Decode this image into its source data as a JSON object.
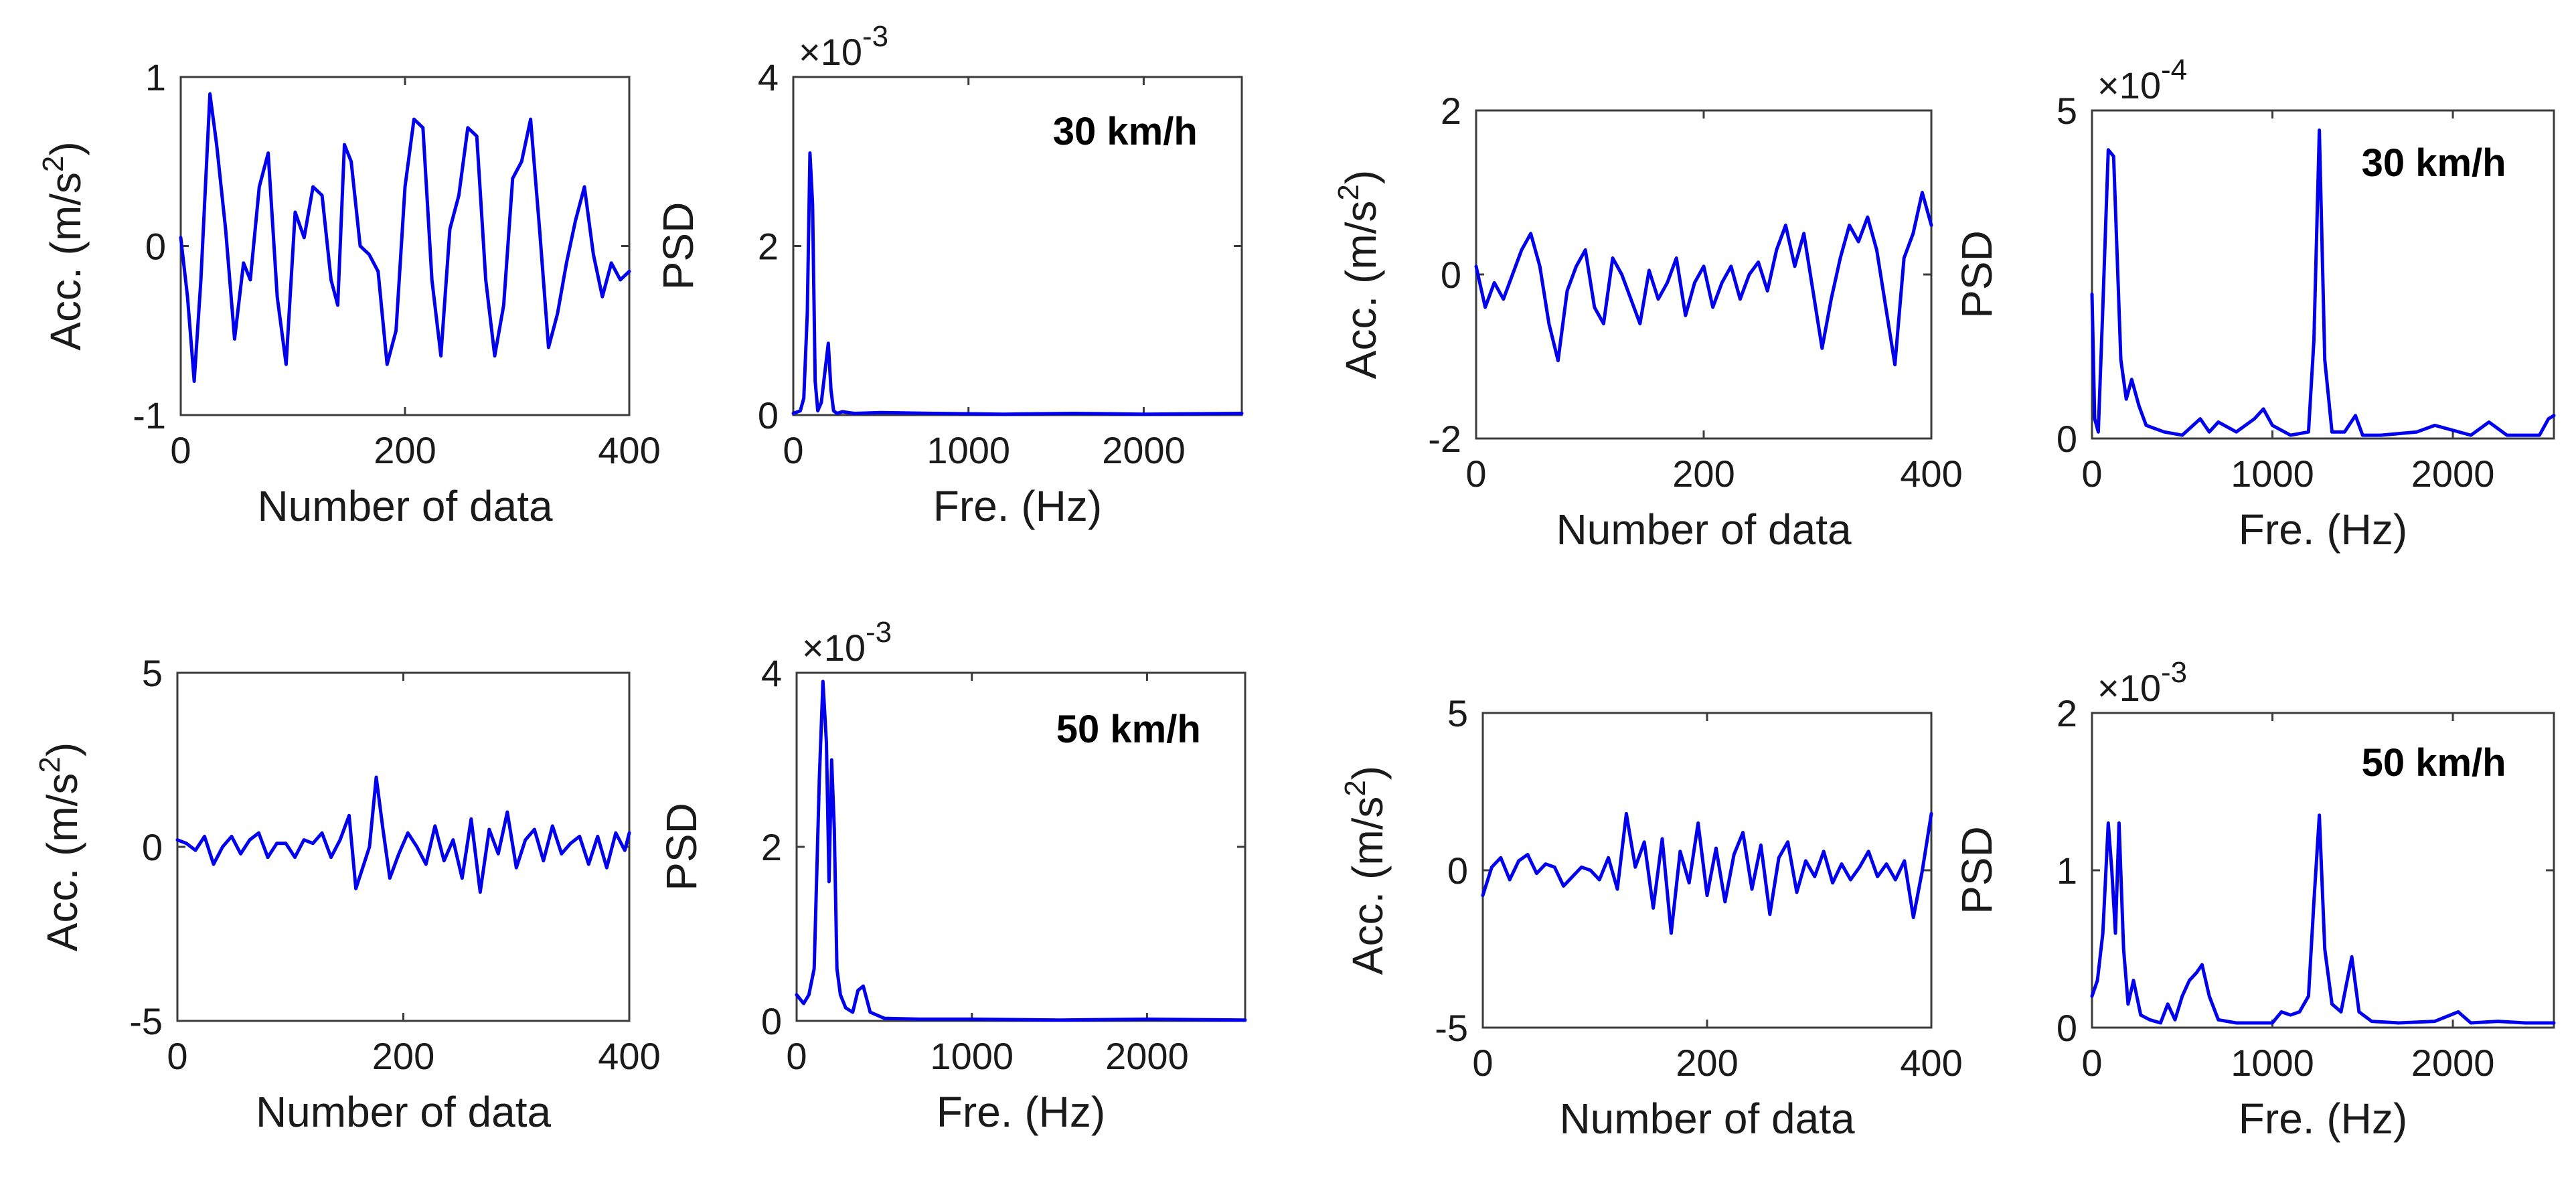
{
  "colors": {
    "series": "#0000ee",
    "axes": "#3c3c3c"
  },
  "chart_data": [
    {
      "id": "p1",
      "type": "line",
      "xlabel": "Number of data",
      "ylabel": "Acc. (m/s^2)",
      "xlim": [
        0,
        400
      ],
      "ylim": [
        -1,
        1
      ],
      "xticks": [
        0,
        200,
        400
      ],
      "xtick_labels": [
        "0",
        "200",
        "400"
      ],
      "yticks": [
        -1,
        0,
        1
      ],
      "ytick_labels": [
        "-1",
        "0",
        "1"
      ],
      "exponent": null,
      "annotation": null,
      "x": [
        0,
        6,
        12,
        18,
        26,
        32,
        40,
        48,
        56,
        62,
        70,
        78,
        86,
        94,
        102,
        110,
        118,
        126,
        134,
        140,
        146,
        152,
        160,
        168,
        176,
        184,
        192,
        200,
        208,
        216,
        224,
        232,
        240,
        248,
        256,
        264,
        272,
        280,
        288,
        296,
        304,
        312,
        320,
        328,
        336,
        344,
        352,
        360,
        368,
        376,
        384,
        392,
        400
      ],
      "y": [
        0.05,
        -0.3,
        -0.8,
        -0.2,
        0.9,
        0.6,
        0.1,
        -0.55,
        -0.1,
        -0.2,
        0.35,
        0.55,
        -0.3,
        -0.7,
        0.2,
        0.05,
        0.35,
        0.3,
        -0.2,
        -0.35,
        0.6,
        0.5,
        0.0,
        -0.05,
        -0.15,
        -0.7,
        -0.5,
        0.35,
        0.75,
        0.7,
        -0.2,
        -0.65,
        0.1,
        0.3,
        0.7,
        0.65,
        -0.2,
        -0.65,
        -0.35,
        0.4,
        0.5,
        0.75,
        0.1,
        -0.6,
        -0.4,
        -0.1,
        0.15,
        0.35,
        -0.05,
        -0.3,
        -0.1,
        -0.2,
        -0.15
      ]
    },
    {
      "id": "p2",
      "type": "line",
      "xlabel": "Fre. (Hz)",
      "ylabel": "PSD",
      "xlim": [
        0,
        2560
      ],
      "ylim": [
        0,
        4
      ],
      "xticks": [
        0,
        1000,
        2000
      ],
      "xtick_labels": [
        "0",
        "1000",
        "2000"
      ],
      "yticks": [
        0,
        2,
        4
      ],
      "ytick_labels": [
        "0",
        "2",
        "4"
      ],
      "exponent": "×10",
      "exponent_power": "-3",
      "annotation": "30 km/h",
      "x": [
        0,
        40,
        60,
        80,
        95,
        110,
        125,
        140,
        160,
        180,
        200,
        215,
        230,
        250,
        280,
        350,
        500,
        800,
        1200,
        1600,
        2000,
        2560
      ],
      "y": [
        0.02,
        0.05,
        0.2,
        1.2,
        3.1,
        2.5,
        0.4,
        0.05,
        0.15,
        0.5,
        0.85,
        0.3,
        0.05,
        0.02,
        0.04,
        0.02,
        0.03,
        0.02,
        0.01,
        0.02,
        0.01,
        0.02
      ]
    },
    {
      "id": "p3",
      "type": "line",
      "xlabel": "Number of data",
      "ylabel": "Acc. (m/s^2)",
      "xlim": [
        0,
        400
      ],
      "ylim": [
        -2,
        2
      ],
      "xticks": [
        0,
        200,
        400
      ],
      "xtick_labels": [
        "0",
        "200",
        "400"
      ],
      "yticks": [
        -2,
        0,
        2
      ],
      "ytick_labels": [
        "-2",
        "0",
        "2"
      ],
      "exponent": null,
      "annotation": null,
      "x": [
        0,
        8,
        16,
        24,
        32,
        40,
        48,
        56,
        64,
        72,
        80,
        88,
        96,
        104,
        112,
        120,
        128,
        136,
        144,
        152,
        160,
        168,
        176,
        184,
        192,
        200,
        208,
        216,
        224,
        232,
        240,
        248,
        256,
        264,
        272,
        280,
        288,
        296,
        304,
        312,
        320,
        328,
        336,
        344,
        352,
        360,
        368,
        376,
        384,
        392,
        400
      ],
      "y": [
        0.1,
        -0.4,
        -0.1,
        -0.3,
        0.0,
        0.3,
        0.5,
        0.1,
        -0.6,
        -1.05,
        -0.2,
        0.1,
        0.3,
        -0.4,
        -0.6,
        0.2,
        0.0,
        -0.3,
        -0.6,
        0.05,
        -0.3,
        -0.1,
        0.2,
        -0.5,
        -0.1,
        0.1,
        -0.4,
        -0.1,
        0.1,
        -0.3,
        0.0,
        0.15,
        -0.2,
        0.3,
        0.6,
        0.1,
        0.5,
        -0.2,
        -0.9,
        -0.3,
        0.2,
        0.6,
        0.4,
        0.7,
        0.3,
        -0.4,
        -1.1,
        0.2,
        0.5,
        1.0,
        0.6
      ]
    },
    {
      "id": "p4",
      "type": "line",
      "xlabel": "Fre. (Hz)",
      "ylabel": "PSD",
      "xlim": [
        0,
        2560
      ],
      "ylim": [
        0,
        5
      ],
      "xticks": [
        0,
        1000,
        2000
      ],
      "xtick_labels": [
        "0",
        "1000",
        "2000"
      ],
      "yticks": [
        0,
        5
      ],
      "ytick_labels": [
        "0",
        "5"
      ],
      "exponent": "×10",
      "exponent_power": "-4",
      "annotation": "30 km/h",
      "x": [
        0,
        15,
        35,
        60,
        90,
        120,
        160,
        190,
        220,
        260,
        300,
        400,
        500,
        600,
        650,
        700,
        800,
        900,
        950,
        1000,
        1100,
        1200,
        1230,
        1260,
        1290,
        1330,
        1400,
        1460,
        1500,
        1600,
        1800,
        1900,
        2100,
        2200,
        2300,
        2480,
        2530,
        2560
      ],
      "y": [
        2.2,
        0.3,
        0.1,
        2.0,
        4.4,
        4.3,
        1.2,
        0.6,
        0.9,
        0.5,
        0.2,
        0.1,
        0.05,
        0.3,
        0.1,
        0.25,
        0.1,
        0.3,
        0.45,
        0.2,
        0.05,
        0.1,
        1.5,
        4.7,
        1.2,
        0.1,
        0.1,
        0.35,
        0.05,
        0.05,
        0.1,
        0.2,
        0.05,
        0.25,
        0.05,
        0.05,
        0.3,
        0.35
      ]
    },
    {
      "id": "p5",
      "type": "line",
      "xlabel": "Number of data",
      "ylabel": "Acc. (m/s^2)",
      "xlim": [
        0,
        400
      ],
      "ylim": [
        -5,
        5
      ],
      "xticks": [
        0,
        200,
        400
      ],
      "xtick_labels": [
        "0",
        "200",
        "400"
      ],
      "yticks": [
        -5,
        0,
        5
      ],
      "ytick_labels": [
        "-5",
        "0",
        "5"
      ],
      "exponent": null,
      "annotation": null,
      "x": [
        0,
        8,
        16,
        24,
        32,
        40,
        48,
        56,
        64,
        72,
        80,
        88,
        96,
        104,
        112,
        120,
        128,
        136,
        144,
        152,
        158,
        164,
        170,
        176,
        182,
        188,
        196,
        204,
        212,
        220,
        228,
        236,
        244,
        252,
        260,
        268,
        276,
        284,
        292,
        300,
        308,
        316,
        324,
        332,
        340,
        348,
        356,
        364,
        372,
        380,
        388,
        396,
        400
      ],
      "y": [
        0.2,
        0.1,
        -0.1,
        0.3,
        -0.5,
        0.0,
        0.3,
        -0.2,
        0.2,
        0.4,
        -0.3,
        0.1,
        0.1,
        -0.3,
        0.2,
        0.1,
        0.4,
        -0.3,
        0.2,
        0.9,
        -1.2,
        -0.6,
        0.0,
        2.0,
        0.5,
        -0.9,
        -0.2,
        0.4,
        0.0,
        -0.5,
        0.6,
        -0.4,
        0.2,
        -0.9,
        0.8,
        -1.3,
        0.5,
        -0.2,
        1.0,
        -0.6,
        0.2,
        0.5,
        -0.4,
        0.6,
        -0.2,
        0.1,
        0.3,
        -0.5,
        0.3,
        -0.6,
        0.4,
        -0.1,
        0.4
      ]
    },
    {
      "id": "p6",
      "type": "line",
      "xlabel": "Fre. (Hz)",
      "ylabel": "PSD",
      "xlim": [
        0,
        2560
      ],
      "ylim": [
        0,
        4
      ],
      "xticks": [
        0,
        1000,
        2000
      ],
      "xtick_labels": [
        "0",
        "1000",
        "2000"
      ],
      "yticks": [
        0,
        2,
        4
      ],
      "ytick_labels": [
        "0",
        "2",
        "4"
      ],
      "exponent": "×10",
      "exponent_power": "-3",
      "annotation": "50 km/h",
      "x": [
        0,
        40,
        70,
        100,
        130,
        150,
        170,
        185,
        200,
        215,
        230,
        250,
        280,
        320,
        350,
        380,
        420,
        500,
        700,
        1000,
        1500,
        2000,
        2560
      ],
      "y": [
        0.3,
        0.2,
        0.3,
        0.6,
        2.8,
        3.9,
        3.2,
        1.6,
        3.0,
        2.2,
        0.6,
        0.3,
        0.15,
        0.1,
        0.35,
        0.4,
        0.1,
        0.03,
        0.02,
        0.02,
        0.01,
        0.02,
        0.01
      ]
    },
    {
      "id": "p7",
      "type": "line",
      "xlabel": "Number of data",
      "ylabel": "Acc. (m/s^2)",
      "xlim": [
        0,
        400
      ],
      "ylim": [
        -5,
        5
      ],
      "xticks": [
        0,
        200,
        400
      ],
      "xtick_labels": [
        "0",
        "200",
        "400"
      ],
      "yticks": [
        -5,
        0,
        5
      ],
      "ytick_labels": [
        "-5",
        "0",
        "5"
      ],
      "exponent": null,
      "annotation": null,
      "x": [
        0,
        8,
        16,
        24,
        32,
        40,
        48,
        56,
        64,
        72,
        80,
        88,
        96,
        104,
        112,
        120,
        128,
        136,
        144,
        152,
        160,
        168,
        176,
        184,
        192,
        200,
        208,
        216,
        224,
        232,
        240,
        248,
        256,
        264,
        272,
        280,
        288,
        296,
        304,
        312,
        320,
        328,
        336,
        344,
        352,
        360,
        368,
        376,
        384,
        392,
        400
      ],
      "y": [
        -0.8,
        0.1,
        0.4,
        -0.3,
        0.3,
        0.5,
        -0.1,
        0.2,
        0.1,
        -0.5,
        -0.2,
        0.1,
        0.0,
        -0.3,
        0.4,
        -0.6,
        1.8,
        0.1,
        0.9,
        -1.2,
        1.0,
        -2.0,
        0.6,
        -0.4,
        1.5,
        -0.8,
        0.7,
        -1.0,
        0.5,
        1.2,
        -0.6,
        0.8,
        -1.4,
        0.4,
        0.9,
        -0.7,
        0.3,
        -0.2,
        0.6,
        -0.4,
        0.2,
        -0.3,
        0.1,
        0.6,
        -0.2,
        0.2,
        -0.3,
        0.3,
        -1.5,
        0.0,
        1.8
      ]
    },
    {
      "id": "p8",
      "type": "line",
      "xlabel": "Fre. (Hz)",
      "ylabel": "PSD",
      "xlim": [
        0,
        2560
      ],
      "ylim": [
        0,
        2
      ],
      "xticks": [
        0,
        1000,
        2000
      ],
      "xtick_labels": [
        "0",
        "1000",
        "2000"
      ],
      "yticks": [
        0,
        1,
        2
      ],
      "ytick_labels": [
        "0",
        "1",
        "2"
      ],
      "exponent": "×10",
      "exponent_power": "-3",
      "annotation": "50 km/h",
      "x": [
        0,
        30,
        60,
        90,
        110,
        130,
        150,
        175,
        200,
        230,
        270,
        320,
        380,
        420,
        460,
        500,
        540,
        580,
        610,
        650,
        700,
        800,
        900,
        1000,
        1050,
        1100,
        1150,
        1200,
        1230,
        1260,
        1290,
        1330,
        1380,
        1440,
        1480,
        1550,
        1700,
        1900,
        2030,
        2100,
        2250,
        2400,
        2560
      ],
      "y": [
        0.2,
        0.3,
        0.6,
        1.3,
        1.0,
        0.6,
        1.3,
        0.5,
        0.15,
        0.3,
        0.08,
        0.05,
        0.03,
        0.15,
        0.05,
        0.2,
        0.3,
        0.35,
        0.4,
        0.2,
        0.05,
        0.03,
        0.03,
        0.03,
        0.1,
        0.08,
        0.1,
        0.2,
        0.8,
        1.35,
        0.5,
        0.15,
        0.1,
        0.45,
        0.1,
        0.04,
        0.03,
        0.04,
        0.1,
        0.03,
        0.04,
        0.03,
        0.03
      ]
    }
  ]
}
